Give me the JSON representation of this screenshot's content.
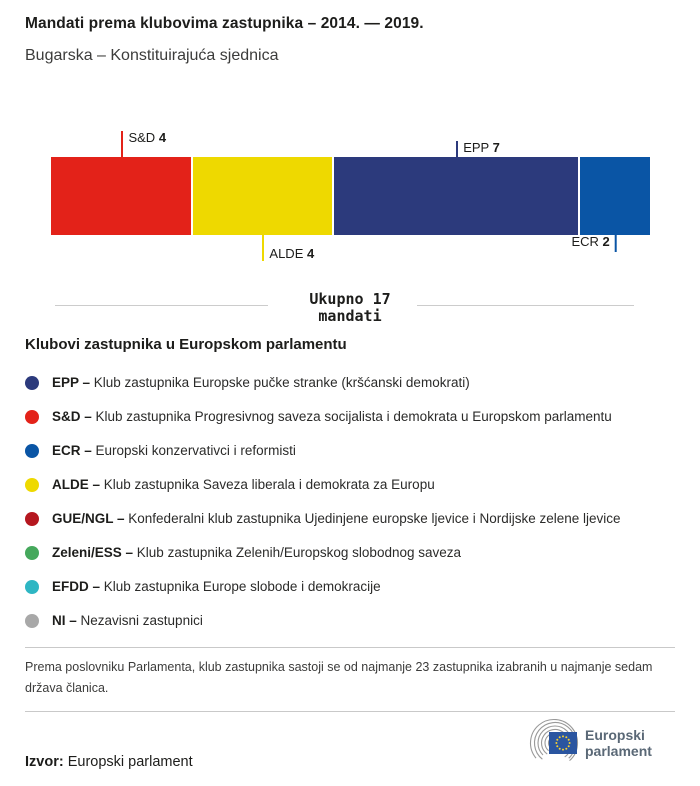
{
  "header": {
    "title": "Mandati prema klubovima zastupnika – 2014. — 2019.",
    "subtitle": "Bugarska – Konstituirajuća sjednica"
  },
  "chart_data": {
    "type": "bar",
    "subtype": "horizontal-stacked",
    "title": "Mandati prema klubovima zastupnika – 2014. — 2019.",
    "subtitle": "Bugarska – Konstituirajuća sjednica",
    "total": 17,
    "categories": [
      "S&D",
      "ALDE",
      "EPP",
      "ECR"
    ],
    "values": [
      4,
      4,
      7,
      2
    ],
    "grid": false,
    "legend_position": "below",
    "segments": [
      {
        "name": "S&D",
        "value": 4,
        "color": "#e32219",
        "annotation": {
          "side": "above",
          "tick": 26,
          "text_side": "right",
          "valign": "top"
        }
      },
      {
        "name": "ALDE",
        "value": 4,
        "color": "#eed900",
        "annotation": {
          "side": "below",
          "tick": 26,
          "text_side": "right",
          "valign": "bottom"
        }
      },
      {
        "name": "EPP",
        "value": 7,
        "color": "#2c3a7c",
        "annotation": {
          "side": "above",
          "tick": 16,
          "text_side": "right",
          "valign": "top"
        }
      },
      {
        "name": "ECR",
        "value": 2,
        "color": "#0a55a5",
        "annotation": {
          "side": "below",
          "tick": 17,
          "text_side": "left",
          "valign": "top"
        }
      }
    ]
  },
  "total_banner": {
    "line1": "Ukupno 17",
    "line2": "mandati"
  },
  "legend": {
    "heading": "Klubovi zastupnika u Europskom parlamentu",
    "items": [
      {
        "abbr": "EPP –",
        "desc": "Klub zastupnika Europske pučke stranke (kršćanski demokrati)",
        "color": "#2c3a7c"
      },
      {
        "abbr": "S&D –",
        "desc": "Klub zastupnika Progresivnog saveza socijalista i demokrata u Europskom parlamentu",
        "color": "#e32219"
      },
      {
        "abbr": "ECR –",
        "desc": "Europski konzervativci i reformisti",
        "color": "#0a55a5"
      },
      {
        "abbr": "ALDE –",
        "desc": "Klub zastupnika Saveza liberala i demokrata za Europu",
        "color": "#eed900"
      },
      {
        "abbr": "GUE/NGL –",
        "desc": "Konfederalni klub zastupnika Ujedinjene europske ljevice i Nordijske zelene ljevice",
        "color": "#b5171f"
      },
      {
        "abbr": "Zeleni/ESS –",
        "desc": "Klub zastupnika Zelenih/Europskog slobodnog saveza",
        "color": "#45a85c"
      },
      {
        "abbr": "EFDD –",
        "desc": "Klub zastupnika Europe slobode i demokracije",
        "color": "#2eb6c3"
      },
      {
        "abbr": "NI –",
        "desc": "Nezavisni zastupnici",
        "color": "#a8a8a8"
      }
    ]
  },
  "footer": {
    "note": "Prema poslovniku Parlamenta, klub zastupnika sastoji se od najmanje 23 zastupnika izabranih u najmanje sedam država članica.",
    "source_label": "Izvor:",
    "source_value": "Europski parlament",
    "logo": {
      "line1": "Europski",
      "line2": "parlament"
    }
  }
}
